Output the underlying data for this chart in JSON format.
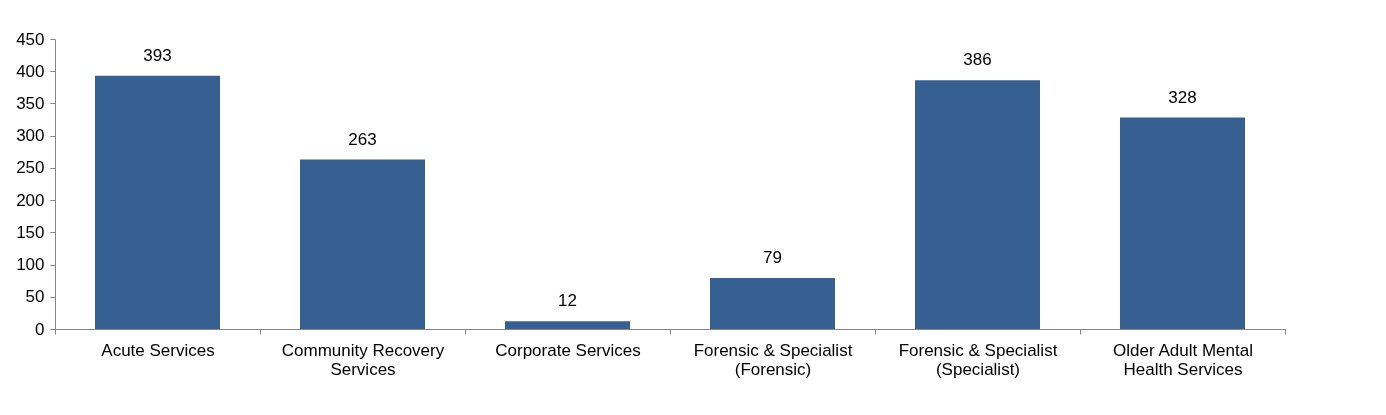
{
  "chart_data": {
    "type": "bar",
    "categories": [
      "Acute Services",
      "Community Recovery Services",
      "Corporate Services",
      "Forensic & Specialist (Forensic)",
      "Forensic & Specialist (Specialist)",
      "Older Adult Mental Health Services"
    ],
    "values": [
      393,
      263,
      12,
      79,
      386,
      328
    ],
    "color": "#366092",
    "ylim": [
      0,
      450
    ],
    "yticks": [
      0,
      50,
      100,
      150,
      200,
      250,
      300,
      350,
      400,
      450
    ],
    "grid": false,
    "data_labels": true
  }
}
